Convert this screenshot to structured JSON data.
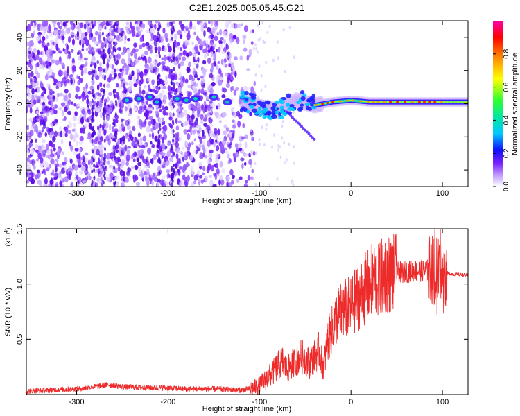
{
  "title": "C2E1.2025.005.05.45.G21",
  "colors": {
    "snr_line": "#ee2b2b",
    "axes": "#000000",
    "colormap": [
      "#ffffff",
      "#c9a8ff",
      "#7a22ff",
      "#1010ff",
      "#00c8ff",
      "#00e8a0",
      "#30ff30",
      "#ffff00",
      "#ff8800",
      "#ff0000",
      "#ff00aa"
    ]
  },
  "chart_data": [
    {
      "type": "heatmap",
      "xlabel": "Height of straight line (km)",
      "ylabel": "Frequency (Hz)",
      "xlim": [
        -355,
        128
      ],
      "ylim": [
        -50,
        50
      ],
      "xticks": [
        -300,
        -200,
        -100,
        0,
        100
      ],
      "xtick_labels": [
        "-300",
        "-200",
        "-100",
        "0",
        "100"
      ],
      "yticks": [
        -40,
        -20,
        0,
        20,
        40
      ],
      "ytick_labels": [
        "-40",
        "-20",
        "0",
        "20",
        "40"
      ],
      "colorbar": {
        "label": "Normalized spectral amplitude",
        "range": [
          0.0,
          1.0
        ],
        "ticks": [
          0.0,
          0.2,
          0.4,
          0.6,
          0.8
        ],
        "tick_labels": [
          "0.0",
          "0.2",
          "0.4",
          "0.6",
          "0.8"
        ]
      },
      "features": {
        "noise_region_x": [
          -355,
          -115
        ],
        "signal_track": [
          [
            -120,
            2
          ],
          [
            -100,
            -2
          ],
          [
            -80,
            -4
          ],
          [
            -60,
            2
          ],
          [
            -40,
            -1
          ],
          [
            -20,
            1
          ],
          [
            0,
            2
          ],
          [
            20,
            1
          ],
          [
            60,
            1
          ],
          [
            100,
            1
          ],
          [
            128,
            1
          ]
        ]
      }
    },
    {
      "type": "line",
      "xlabel": "Height of straight line (km)",
      "ylabel": "SNR (10 * v/v)",
      "multiplier_label": "(x10",
      "multiplier_exp": "4",
      "multiplier_close": ")",
      "xlim": [
        -355,
        128
      ],
      "ylim": [
        0,
        1.5
      ],
      "xticks": [
        -300,
        -200,
        -100,
        0,
        100
      ],
      "xtick_labels": [
        "-300",
        "-200",
        "-100",
        "0",
        "100"
      ],
      "yticks": [
        0.5,
        1.0,
        1.5
      ],
      "ytick_labels": [
        "0.5",
        "1.0",
        "1.5"
      ],
      "series": [
        {
          "x": [
            -355,
            -330,
            -300,
            -280,
            -265,
            -250,
            -220,
            -200,
            -180,
            -150,
            -120,
            -110,
            -100,
            -95,
            -90,
            -85,
            -80,
            -75,
            -70,
            -65,
            -60,
            -55,
            -50,
            -45,
            -40,
            -35,
            -30,
            -25,
            -20,
            -15,
            -10,
            -5,
            0,
            5,
            10,
            15,
            20,
            25,
            30,
            35,
            40,
            45,
            50,
            60,
            70,
            80,
            90,
            95,
            100,
            105,
            110,
            128
          ],
          "y": [
            0.03,
            0.04,
            0.05,
            0.07,
            0.09,
            0.07,
            0.06,
            0.06,
            0.05,
            0.05,
            0.04,
            0.05,
            0.08,
            0.12,
            0.16,
            0.2,
            0.26,
            0.3,
            0.22,
            0.27,
            0.3,
            0.35,
            0.32,
            0.28,
            0.34,
            0.4,
            0.25,
            0.5,
            0.6,
            0.72,
            0.75,
            0.78,
            0.8,
            0.85,
            0.9,
            0.95,
            1.0,
            1.05,
            1.02,
            1.08,
            1.1,
            1.09,
            1.1,
            1.11,
            1.12,
            1.12,
            1.13,
            1.1,
            1.12,
            1.1,
            1.09,
            1.08
          ]
        }
      ]
    }
  ]
}
